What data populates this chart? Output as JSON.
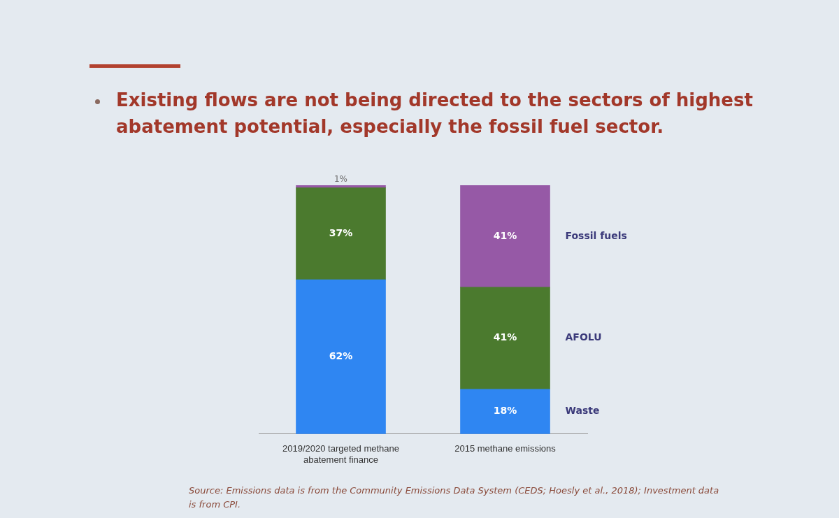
{
  "chart_data": {
    "type": "bar",
    "title": "Existing flows are not being directed to the sectors of highest abatement potential, especially the fossil fuel sector.",
    "categories": [
      "2019/2020 targeted methane abatement finance",
      "2015 methane emissions"
    ],
    "stacked": true,
    "ylim": [
      0,
      100
    ],
    "tick_labels": "x",
    "grid": false,
    "legend": false,
    "series": [
      {
        "name": "Waste",
        "color": "#2f86f2",
        "values": [
          62,
          18
        ],
        "value_labels": [
          "62%",
          "18%"
        ]
      },
      {
        "name": "AFOLU",
        "color": "#4b7a2e",
        "values": [
          37,
          41
        ],
        "value_labels": [
          "37%",
          "41%"
        ]
      },
      {
        "name": "Fossil fuels",
        "color": "#9659a6",
        "values": [
          1,
          41
        ],
        "value_labels": [
          "1%",
          "41%"
        ]
      }
    ],
    "annotations": [
      "Source: Emissions data is from the Community Emissions Data System (CEDS; Hoesly et al., 2018); Investment data is from CPI."
    ]
  }
}
